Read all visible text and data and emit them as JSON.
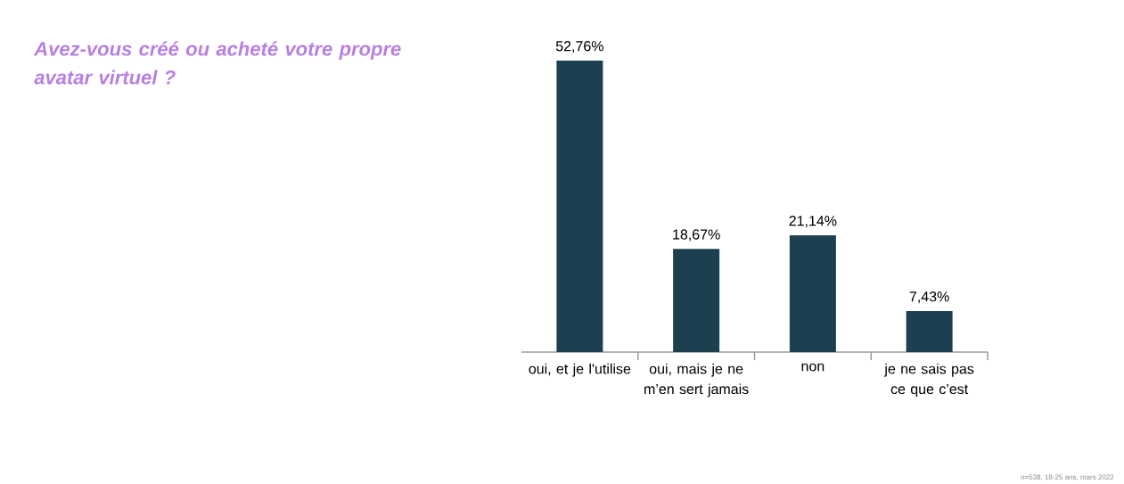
{
  "chart_data": {
    "type": "bar",
    "title": "Avez-vous créé ou acheté votre propre avatar virtuel ?",
    "categories": [
      "oui, et je l'utilise",
      "oui, mais je ne m’en sert jamais",
      "non",
      "je ne sais pas ce que c’est"
    ],
    "values": [
      52.76,
      18.67,
      21.14,
      7.43
    ],
    "value_labels": [
      "52,76%",
      "18,67%",
      "21,14%",
      "7,43%"
    ],
    "color": "#1c4050",
    "annotations": [
      "n=538, 18-25 ans, mars 2022"
    ]
  }
}
